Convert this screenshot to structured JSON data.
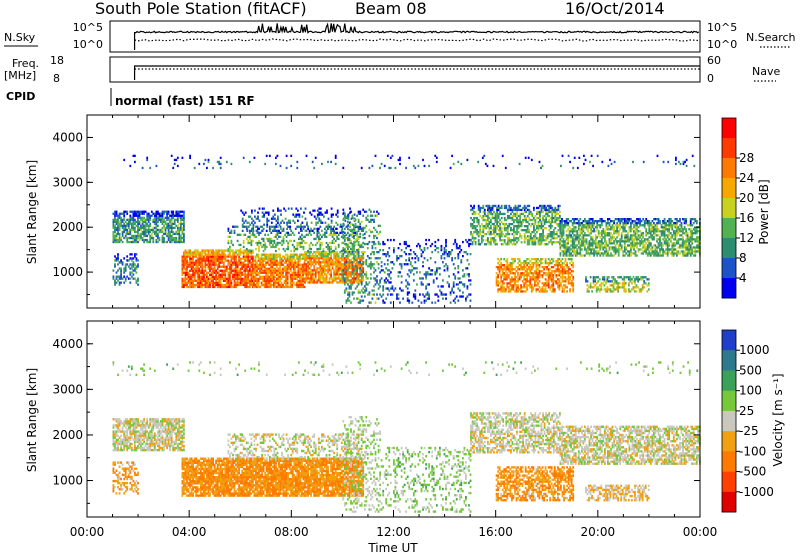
{
  "header": {
    "station": "South Pole Station (fitACF)",
    "beam": "Beam 08",
    "date": "16/Oct/2014"
  },
  "top_panels": {
    "nsky_label": "N.Sky",
    "nsearch_label": "N.Search",
    "left_ticks": [
      "10^5",
      "10^0"
    ],
    "right_ticks": [
      "10^5",
      "10^0"
    ],
    "freq_label_1": "Freq.",
    "freq_label_2": "[MHz]",
    "freq_ticks": [
      "18",
      "8"
    ],
    "nave_label": "Nave",
    "nave_ticks": [
      "60",
      "0"
    ],
    "cpid_label": "CPID",
    "cpid_text": "normal (fast) 151 RF"
  },
  "colors": {
    "power_scale": [
      "#0000f0",
      "#1c54c8",
      "#2e8c70",
      "#52b152",
      "#c8d21e",
      "#f5a800",
      "#ff7a00",
      "#ff3a00",
      "#ff0000"
    ],
    "velocity_scale": [
      "#1f3fc8",
      "#2e7a8c",
      "#3aa05a",
      "#74c83a",
      "#c8c8c0",
      "#f0a010",
      "#ff7a00",
      "#ff4000",
      "#e00000"
    ]
  },
  "chart_data": [
    {
      "type": "heatmap",
      "name": "Power",
      "xlabel": "",
      "ylabel": "Slant Range [km]",
      "x_range_hours": [
        0,
        24
      ],
      "ylim": [
        200,
        4500
      ],
      "yticks": [
        "1000",
        "2000",
        "3000",
        "4000"
      ],
      "colorbar": {
        "label": "Power [dB]",
        "ticks": [
          "4",
          "8",
          "12",
          "16",
          "20",
          "24",
          "28"
        ],
        "range": [
          0,
          32
        ]
      },
      "regions": [
        {
          "t0": 1.0,
          "t1": 3.8,
          "r0": 1650,
          "r1": 2350,
          "value": 10,
          "density": 0.7
        },
        {
          "t0": 1.0,
          "t1": 2.0,
          "r0": 700,
          "r1": 1400,
          "value": 8,
          "density": 0.35
        },
        {
          "t0": 3.7,
          "t1": 6.5,
          "r0": 650,
          "r1": 1500,
          "value": 25,
          "density": 0.85
        },
        {
          "t0": 6.5,
          "t1": 8.5,
          "r0": 650,
          "r1": 1400,
          "value": 23,
          "density": 0.8
        },
        {
          "t0": 8.5,
          "t1": 10.8,
          "r0": 750,
          "r1": 1450,
          "value": 22,
          "density": 0.75
        },
        {
          "t0": 5.5,
          "t1": 10.8,
          "r0": 1450,
          "r1": 2000,
          "value": 12,
          "density": 0.35
        },
        {
          "t0": 6.0,
          "t1": 10.5,
          "r0": 1900,
          "r1": 2400,
          "value": 7,
          "density": 0.22
        },
        {
          "t0": 10.0,
          "t1": 11.5,
          "r0": 300,
          "r1": 2400,
          "value": 10,
          "density": 0.25
        },
        {
          "t0": 11.5,
          "t1": 15.0,
          "r0": 300,
          "r1": 1700,
          "value": 6,
          "density": 0.2
        },
        {
          "t0": 15.0,
          "t1": 18.5,
          "r0": 1600,
          "r1": 2500,
          "value": 12,
          "density": 0.55
        },
        {
          "t0": 16.0,
          "t1": 19.0,
          "r0": 550,
          "r1": 1300,
          "value": 22,
          "density": 0.6
        },
        {
          "t0": 18.5,
          "t1": 24.0,
          "r0": 1350,
          "r1": 2200,
          "value": 12,
          "density": 0.65
        },
        {
          "t0": 19.5,
          "t1": 22.0,
          "r0": 550,
          "r1": 900,
          "value": 16,
          "density": 0.5
        },
        {
          "t0": 1.0,
          "t1": 24.0,
          "r0": 3300,
          "r1": 3600,
          "value": 6,
          "density": 0.05
        }
      ]
    },
    {
      "type": "heatmap",
      "name": "Velocity",
      "xlabel": "Time UT",
      "ylabel": "Slant Range [km]",
      "x_range_hours": [
        0,
        24
      ],
      "xticks": [
        "00:00",
        "04:00",
        "08:00",
        "12:00",
        "16:00",
        "20:00",
        "00:00"
      ],
      "ylim": [
        200,
        4500
      ],
      "yticks": [
        "1000",
        "2000",
        "3000",
        "4000"
      ],
      "colorbar": {
        "label": "Velocity [m s⁻¹]",
        "ticks": [
          "1000",
          "500",
          "100",
          "25",
          "-25",
          "-100",
          "-500",
          "-1000"
        ],
        "range": [
          -1200,
          1200
        ]
      },
      "regions": [
        {
          "t0": 1.0,
          "t1": 3.8,
          "r0": 1650,
          "r1": 2350,
          "value": 0,
          "density": 0.75
        },
        {
          "t0": 1.0,
          "t1": 2.0,
          "r0": 700,
          "r1": 1400,
          "value": -300,
          "density": 0.35
        },
        {
          "t0": 3.7,
          "t1": 10.8,
          "r0": 650,
          "r1": 1500,
          "value": -400,
          "density": 0.85
        },
        {
          "t0": 5.5,
          "t1": 10.8,
          "r0": 1450,
          "r1": 2000,
          "value": 0,
          "density": 0.35
        },
        {
          "t0": 10.0,
          "t1": 11.5,
          "r0": 300,
          "r1": 2400,
          "value": 150,
          "density": 0.25
        },
        {
          "t0": 11.5,
          "t1": 15.0,
          "r0": 300,
          "r1": 1700,
          "value": 200,
          "density": 0.22
        },
        {
          "t0": 15.0,
          "t1": 18.5,
          "r0": 1600,
          "r1": 2500,
          "value": 0,
          "density": 0.55
        },
        {
          "t0": 16.0,
          "t1": 19.0,
          "r0": 550,
          "r1": 1300,
          "value": -350,
          "density": 0.6
        },
        {
          "t0": 18.5,
          "t1": 24.0,
          "r0": 1350,
          "r1": 2200,
          "value": 0,
          "density": 0.65
        },
        {
          "t0": 19.5,
          "t1": 22.0,
          "r0": 550,
          "r1": 900,
          "value": -150,
          "density": 0.5
        },
        {
          "t0": 1.0,
          "t1": 24.0,
          "r0": 3300,
          "r1": 3600,
          "value": 200,
          "density": 0.05
        }
      ]
    }
  ]
}
